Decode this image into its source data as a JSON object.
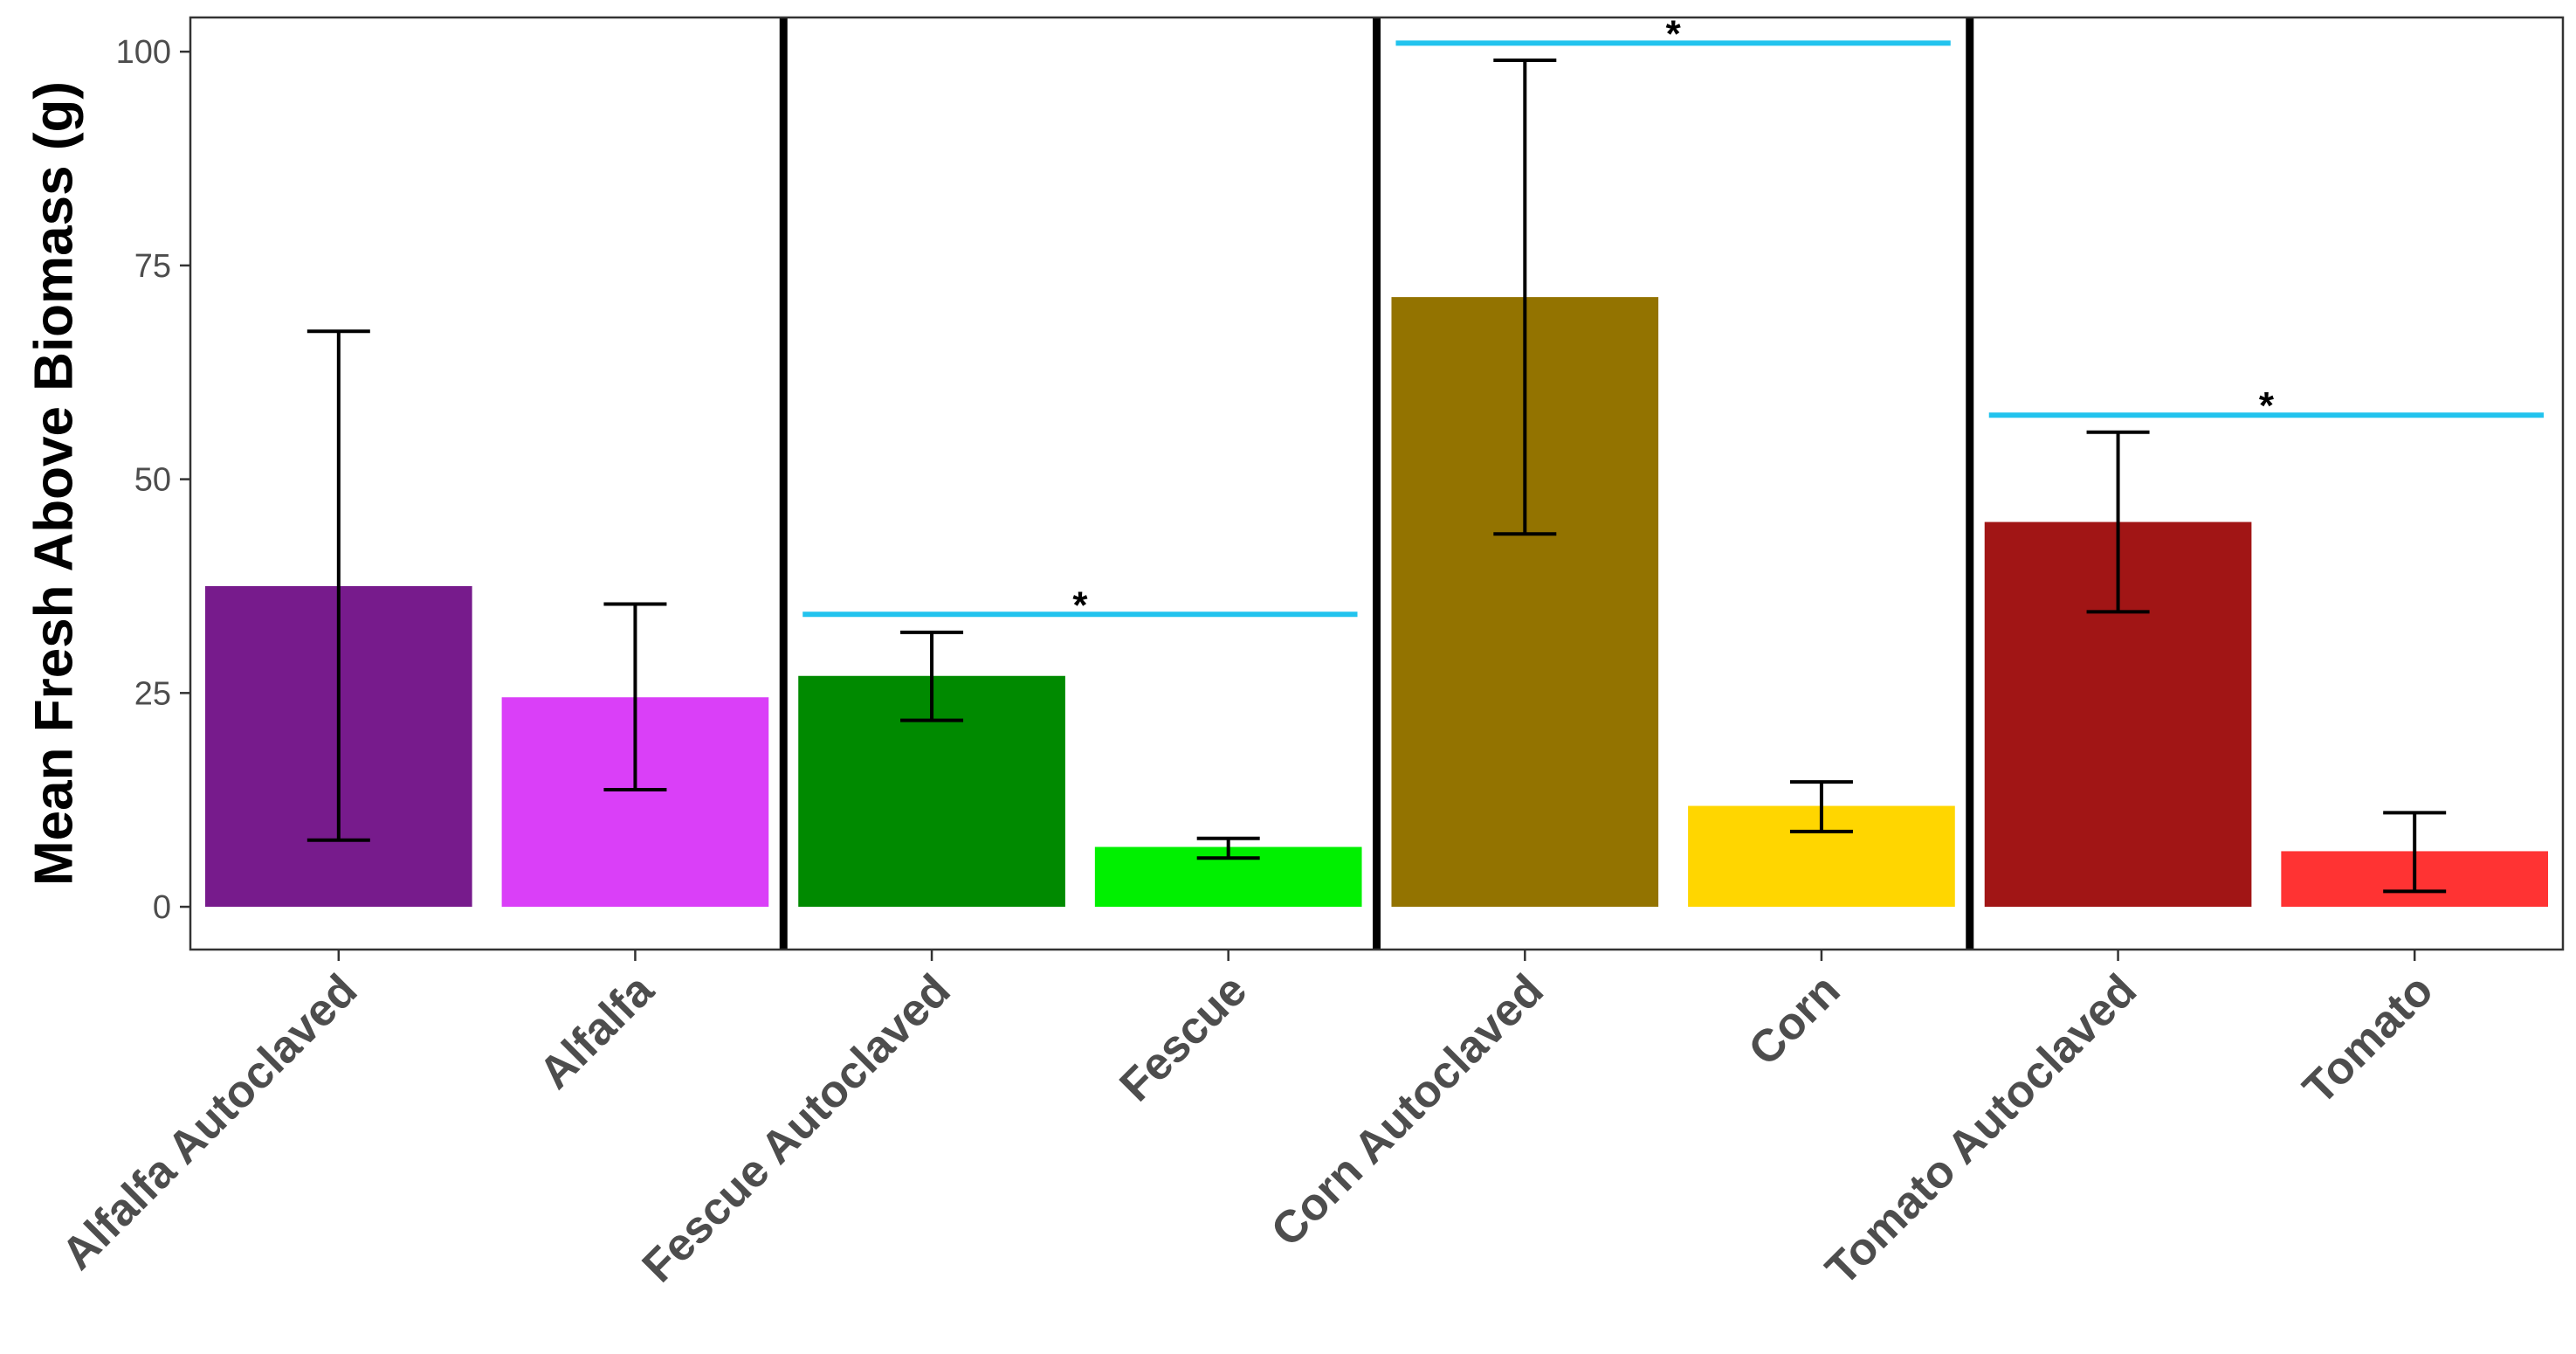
{
  "chart_data": {
    "type": "bar",
    "title": "",
    "xlabel": "",
    "ylabel": "Mean Fresh Above Biomass (g)",
    "ylim": [
      -5,
      104
    ],
    "yticks": [
      0,
      25,
      50,
      75,
      100
    ],
    "grid": false,
    "categories": [
      "Alfalfa Autoclaved",
      "Alfalfa",
      "Fescue Autoclaved",
      "Fescue",
      "Corn Autoclaved",
      "Corn",
      "Tomato Autoclaved",
      "Tomato"
    ],
    "values": [
      37.5,
      24.5,
      27,
      7,
      71.3,
      11.8,
      45,
      6.5
    ],
    "error_low": [
      7.8,
      13.7,
      21.8,
      5.7,
      43.6,
      8.8,
      34.5,
      1.8
    ],
    "error_high": [
      67.3,
      35.4,
      32.1,
      8.0,
      99.0,
      14.6,
      55.5,
      11.0
    ],
    "colors": [
      "#771B8C",
      "#DA3FF8",
      "#008A00",
      "#00F000",
      "#937300",
      "#FFD600",
      "#A11515",
      "#FF3333"
    ],
    "group_separators_after": [
      1,
      3,
      5
    ],
    "significance": [
      {
        "from": 2,
        "to": 3,
        "y": 34.2,
        "label": "*"
      },
      {
        "from": 4,
        "to": 5,
        "y": 101,
        "label": "*"
      },
      {
        "from": 6,
        "to": 7,
        "y": 57.5,
        "label": "*"
      }
    ],
    "significance_color": "#22C3EE"
  }
}
